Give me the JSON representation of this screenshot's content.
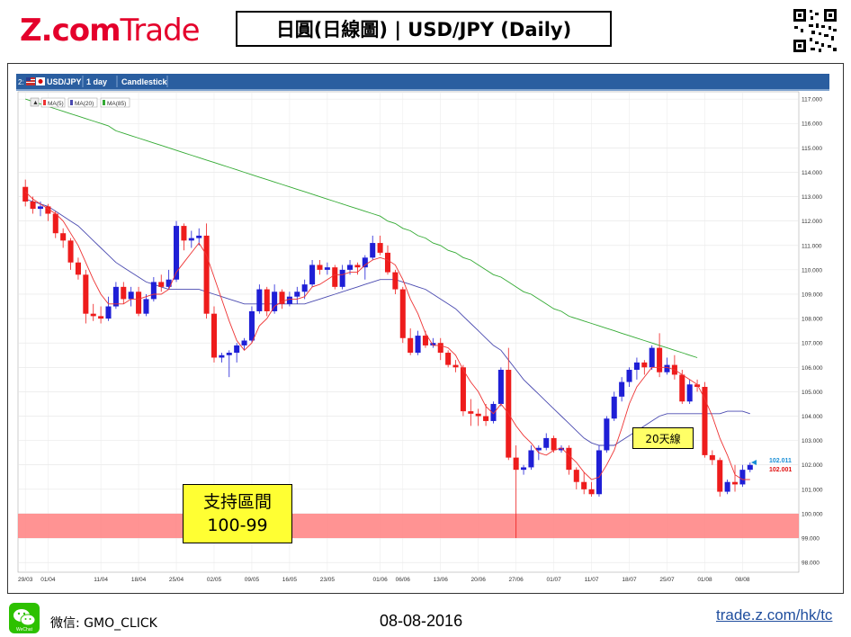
{
  "brand": {
    "name_z": "Z.com",
    "name_trade": "Trade"
  },
  "header": {
    "title": "日圓(日線圖) | USD/JPY  (Daily)"
  },
  "chart_bar": {
    "symbol": "USD/JPY",
    "interval": "1 day",
    "style": "Candlestick"
  },
  "legend": [
    "MA(5)",
    "MA(20)",
    "MA(85)"
  ],
  "annotations": {
    "ma20_note": "20天線",
    "support_line1": "支持區間",
    "support_line2": "100-99"
  },
  "footer": {
    "wechat_label": "微信: GMO_CLICK",
    "date": "08-08-2016",
    "url": "trade.z.com/hk/tc"
  },
  "colors": {
    "up": "#1f1fd6",
    "down": "#ee1c1c",
    "ma5": "#ee3333",
    "ma20": "#4a4ab0",
    "ma85": "#33aa33",
    "support_band": "#ff8080",
    "brand_red": "#e4002b"
  },
  "chart_data": {
    "type": "candlestick",
    "ylim": [
      97.6,
      117.3
    ],
    "y_ticks": [
      "117.000",
      "116.000",
      "115.000",
      "114.000",
      "113.000",
      "112.000",
      "111.000",
      "110.000",
      "109.000",
      "108.000",
      "107.000",
      "106.000",
      "105.000",
      "104.000",
      "103.000",
      "102.000",
      "101.000",
      "100.000",
      "99.000",
      "98.000"
    ],
    "x_ticks": [
      "29/03",
      "01/04",
      "11/04",
      "18/04",
      "25/04",
      "02/05",
      "09/05",
      "16/05",
      "23/05",
      "01/06",
      "06/06",
      "13/06",
      "20/06",
      "27/06",
      "01/07",
      "11/07",
      "18/07",
      "25/07",
      "01/08",
      "08/08"
    ],
    "x_tick_index": [
      0,
      3,
      10,
      15,
      20,
      25,
      30,
      35,
      40,
      47,
      50,
      55,
      60,
      65,
      70,
      75,
      80,
      85,
      90,
      95
    ],
    "last_prices": [
      "102.011",
      "102.001"
    ],
    "support_zone": [
      99.0,
      100.0
    ],
    "candles": [
      [
        113.4,
        113.7,
        112.6,
        112.8
      ],
      [
        112.8,
        113.0,
        112.3,
        112.5
      ],
      [
        112.5,
        112.8,
        112.2,
        112.6
      ],
      [
        112.6,
        112.7,
        112.0,
        112.3
      ],
      [
        112.3,
        112.4,
        111.3,
        111.5
      ],
      [
        111.5,
        111.7,
        110.9,
        111.2
      ],
      [
        111.2,
        111.3,
        110.0,
        110.3
      ],
      [
        110.3,
        110.5,
        109.6,
        109.8
      ],
      [
        109.8,
        110.0,
        107.8,
        108.2
      ],
      [
        108.2,
        108.6,
        107.9,
        108.1
      ],
      [
        108.1,
        108.5,
        107.8,
        108.0
      ],
      [
        108.0,
        108.9,
        107.9,
        108.5
      ],
      [
        108.5,
        109.5,
        108.4,
        109.3
      ],
      [
        109.3,
        109.5,
        108.6,
        108.8
      ],
      [
        108.8,
        109.3,
        108.5,
        109.1
      ],
      [
        109.1,
        109.3,
        108.1,
        108.2
      ],
      [
        108.2,
        109.0,
        108.1,
        108.8
      ],
      [
        108.8,
        109.7,
        108.7,
        109.5
      ],
      [
        109.5,
        109.8,
        109.1,
        109.3
      ],
      [
        109.3,
        110.0,
        109.2,
        109.6
      ],
      [
        109.6,
        112.0,
        109.5,
        111.8
      ],
      [
        111.8,
        111.9,
        110.8,
        111.2
      ],
      [
        111.2,
        111.6,
        110.9,
        111.3
      ],
      [
        111.3,
        111.7,
        111.0,
        111.4
      ],
      [
        111.4,
        111.9,
        108.0,
        108.2
      ],
      [
        108.2,
        108.5,
        106.2,
        106.4
      ],
      [
        106.4,
        106.6,
        106.2,
        106.5
      ],
      [
        106.5,
        106.7,
        105.6,
        106.6
      ],
      [
        106.6,
        107.0,
        106.2,
        106.9
      ],
      [
        106.9,
        107.2,
        106.7,
        107.1
      ],
      [
        107.1,
        108.5,
        107.0,
        108.3
      ],
      [
        108.3,
        109.4,
        108.2,
        109.2
      ],
      [
        109.2,
        109.3,
        108.1,
        108.3
      ],
      [
        108.3,
        109.4,
        108.2,
        109.1
      ],
      [
        109.1,
        109.2,
        108.4,
        108.6
      ],
      [
        108.6,
        109.1,
        108.5,
        108.9
      ],
      [
        108.9,
        109.3,
        108.6,
        109.1
      ],
      [
        109.1,
        109.6,
        108.8,
        109.4
      ],
      [
        109.4,
        110.4,
        109.3,
        110.2
      ],
      [
        110.2,
        110.4,
        109.8,
        110.0
      ],
      [
        110.0,
        110.3,
        109.8,
        110.1
      ],
      [
        110.1,
        110.2,
        109.2,
        109.3
      ],
      [
        109.3,
        110.2,
        109.2,
        110.0
      ],
      [
        110.0,
        110.4,
        109.8,
        110.2
      ],
      [
        110.2,
        110.3,
        109.8,
        110.1
      ],
      [
        110.1,
        110.6,
        109.6,
        110.5
      ],
      [
        110.5,
        111.4,
        110.4,
        111.1
      ],
      [
        111.1,
        111.4,
        110.6,
        110.7
      ],
      [
        110.7,
        111.0,
        109.8,
        109.9
      ],
      [
        109.9,
        110.0,
        109.0,
        109.2
      ],
      [
        109.2,
        109.3,
        107.0,
        107.2
      ],
      [
        107.2,
        107.6,
        106.5,
        106.6
      ],
      [
        106.6,
        107.5,
        106.5,
        107.3
      ],
      [
        107.3,
        107.5,
        106.8,
        106.9
      ],
      [
        106.9,
        107.2,
        106.8,
        107.0
      ],
      [
        107.0,
        107.2,
        106.3,
        106.6
      ],
      [
        106.6,
        106.7,
        106.0,
        106.1
      ],
      [
        106.1,
        106.3,
        105.8,
        106.0
      ],
      [
        106.0,
        106.1,
        104.0,
        104.2
      ],
      [
        104.2,
        104.7,
        103.6,
        104.1
      ],
      [
        104.1,
        104.3,
        103.6,
        104.0
      ],
      [
        104.0,
        104.5,
        103.6,
        103.8
      ],
      [
        103.8,
        104.6,
        103.7,
        104.5
      ],
      [
        104.5,
        106.0,
        104.4,
        105.9
      ],
      [
        105.9,
        106.8,
        102.2,
        102.3
      ],
      [
        102.3,
        102.8,
        99.0,
        101.8
      ],
      [
        101.8,
        102.0,
        101.6,
        101.9
      ],
      [
        101.9,
        102.8,
        101.8,
        102.6
      ],
      [
        102.6,
        102.8,
        102.2,
        102.7
      ],
      [
        102.7,
        103.3,
        102.6,
        103.1
      ],
      [
        103.1,
        103.2,
        102.5,
        102.6
      ],
      [
        102.6,
        102.8,
        102.5,
        102.7
      ],
      [
        102.7,
        102.8,
        101.6,
        101.8
      ],
      [
        101.8,
        101.9,
        101.0,
        101.3
      ],
      [
        101.3,
        101.7,
        100.8,
        101.0
      ],
      [
        101.0,
        101.3,
        100.7,
        100.8
      ],
      [
        100.8,
        102.8,
        100.7,
        102.6
      ],
      [
        102.6,
        104.0,
        102.5,
        103.9
      ],
      [
        103.9,
        105.0,
        103.8,
        104.8
      ],
      [
        104.8,
        105.6,
        104.6,
        105.4
      ],
      [
        105.4,
        106.0,
        105.2,
        105.9
      ],
      [
        105.9,
        106.4,
        105.5,
        106.2
      ],
      [
        106.2,
        106.3,
        105.7,
        106.0
      ],
      [
        106.0,
        106.9,
        105.9,
        106.8
      ],
      [
        106.8,
        107.4,
        105.6,
        105.8
      ],
      [
        105.8,
        106.4,
        105.7,
        106.1
      ],
      [
        106.1,
        106.5,
        105.5,
        105.7
      ],
      [
        105.7,
        105.9,
        104.5,
        104.6
      ],
      [
        104.6,
        105.5,
        104.5,
        105.3
      ],
      [
        105.3,
        105.5,
        105.0,
        105.2
      ],
      [
        105.2,
        105.4,
        102.3,
        102.4
      ],
      [
        102.4,
        102.6,
        102.0,
        102.2
      ],
      [
        102.2,
        102.3,
        100.7,
        100.9
      ],
      [
        100.9,
        101.4,
        100.8,
        101.3
      ],
      [
        101.3,
        102.0,
        100.9,
        101.2
      ],
      [
        101.2,
        102.0,
        101.1,
        101.8
      ],
      [
        101.8,
        102.1,
        101.7,
        102.0
      ]
    ],
    "ma5": [
      113.2,
      112.9,
      112.7,
      112.5,
      112.3,
      112.0,
      111.5,
      111.0,
      110.3,
      109.6,
      109.0,
      108.6,
      108.6,
      108.6,
      108.8,
      108.8,
      108.9,
      109.0,
      109.0,
      109.2,
      109.9,
      110.3,
      110.7,
      111.1,
      110.6,
      109.7,
      108.8,
      107.9,
      107.1,
      106.7,
      107.0,
      107.7,
      108.0,
      108.5,
      108.7,
      108.8,
      108.8,
      108.9,
      109.3,
      109.4,
      109.6,
      109.8,
      109.8,
      109.9,
      109.9,
      110.2,
      110.4,
      110.5,
      110.4,
      110.2,
      109.6,
      108.8,
      108.2,
      107.4,
      106.9,
      106.9,
      106.8,
      106.5,
      105.9,
      105.4,
      105.0,
      104.4,
      104.1,
      104.5,
      104.1,
      103.6,
      103.2,
      102.9,
      102.5,
      102.4,
      102.6,
      102.7,
      102.4,
      102.1,
      101.7,
      101.4,
      101.5,
      102.0,
      102.6,
      103.5,
      104.5,
      105.2,
      105.6,
      106.0,
      106.0,
      106.0,
      105.9,
      105.7,
      105.5,
      105.3,
      104.7,
      104.0,
      103.1,
      102.4,
      101.6,
      101.4,
      101.4
    ],
    "ma20": [
      112.9,
      112.8,
      112.7,
      112.6,
      112.4,
      112.2,
      112.0,
      111.8,
      111.5,
      111.2,
      110.9,
      110.6,
      110.3,
      110.1,
      109.9,
      109.7,
      109.5,
      109.4,
      109.3,
      109.2,
      109.2,
      109.2,
      109.2,
      109.2,
      109.1,
      109.0,
      108.9,
      108.8,
      108.7,
      108.6,
      108.6,
      108.6,
      108.6,
      108.6,
      108.6,
      108.6,
      108.6,
      108.6,
      108.7,
      108.8,
      108.9,
      109.0,
      109.1,
      109.2,
      109.3,
      109.4,
      109.5,
      109.6,
      109.6,
      109.6,
      109.5,
      109.4,
      109.3,
      109.2,
      109.0,
      108.8,
      108.6,
      108.4,
      108.1,
      107.8,
      107.5,
      107.2,
      106.9,
      106.7,
      106.3,
      105.9,
      105.5,
      105.2,
      104.9,
      104.6,
      104.3,
      104.0,
      103.7,
      103.4,
      103.1,
      102.9,
      102.8,
      102.8,
      102.8,
      103.0,
      103.2,
      103.4,
      103.6,
      103.8,
      104.0,
      104.1,
      104.1,
      104.1,
      104.1,
      104.1,
      104.1,
      104.1,
      104.1,
      104.2,
      104.2,
      104.2,
      104.1
    ],
    "ma85": [
      117.0,
      116.9,
      116.8,
      116.7,
      116.6,
      116.5,
      116.4,
      116.3,
      116.2,
      116.1,
      116.0,
      115.9,
      115.7,
      115.6,
      115.5,
      115.4,
      115.3,
      115.2,
      115.1,
      115.0,
      114.9,
      114.8,
      114.7,
      114.6,
      114.5,
      114.4,
      114.3,
      114.2,
      114.1,
      114.0,
      113.9,
      113.8,
      113.7,
      113.6,
      113.5,
      113.4,
      113.3,
      113.2,
      113.1,
      113.0,
      112.9,
      112.8,
      112.7,
      112.6,
      112.5,
      112.4,
      112.3,
      112.2,
      112.0,
      111.9,
      111.7,
      111.6,
      111.4,
      111.3,
      111.1,
      111.0,
      110.8,
      110.7,
      110.5,
      110.4,
      110.2,
      110.0,
      109.8,
      109.7,
      109.5,
      109.3,
      109.1,
      109.0,
      108.8,
      108.6,
      108.4,
      108.3,
      108.1,
      108.0,
      107.9,
      107.8,
      107.7,
      107.6,
      107.5,
      107.4,
      107.3,
      107.2,
      107.1,
      107.0,
      106.9,
      106.8,
      106.7,
      106.6,
      106.5,
      106.4
    ]
  }
}
